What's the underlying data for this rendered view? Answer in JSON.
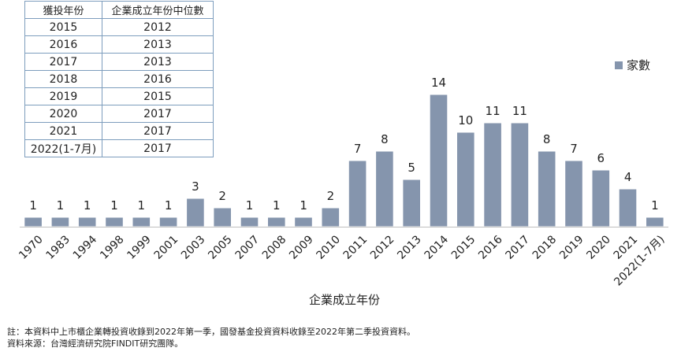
{
  "table": {
    "headers": [
      "獲投年份",
      "企業成立年份中位數"
    ],
    "rows": [
      [
        "2015",
        "2012"
      ],
      [
        "2016",
        "2013"
      ],
      [
        "2017",
        "2013"
      ],
      [
        "2018",
        "2016"
      ],
      [
        "2019",
        "2015"
      ],
      [
        "2020",
        "2017"
      ],
      [
        "2021",
        "2017"
      ],
      [
        "2022(1-7月)",
        "2017"
      ]
    ]
  },
  "notes": {
    "line1": "註：本資料中上市櫃企業轉投資收錄到2022年第一季，國發基金投資資料收錄至2022年第二季投資資料。",
    "line2": "資料來源：台灣經濟研究院FINDIT研究團隊。"
  },
  "colors": {
    "bar": "#8595ad",
    "bar_edge": "#ffffff",
    "axis": "#bfbfbf",
    "table_border": "#7d9dbd"
  },
  "chart_data": {
    "type": "bar",
    "categories": [
      "1970",
      "1983",
      "1994",
      "1998",
      "1999",
      "2001",
      "2003",
      "2005",
      "2007",
      "2008",
      "2009",
      "2010",
      "2011",
      "2012",
      "2013",
      "2014",
      "2015",
      "2016",
      "2017",
      "2018",
      "2019",
      "2020",
      "2021",
      "2022(1-7月)"
    ],
    "series": [
      {
        "name": "家數",
        "values": [
          1,
          1,
          1,
          1,
          1,
          1,
          3,
          2,
          1,
          1,
          1,
          2,
          7,
          8,
          5,
          14,
          10,
          11,
          11,
          8,
          7,
          6,
          4,
          1
        ]
      }
    ],
    "xlabel": "企業成立年份",
    "ylabel": "",
    "ylim": [
      0,
      14
    ],
    "grid": false,
    "legend": "top-right"
  }
}
